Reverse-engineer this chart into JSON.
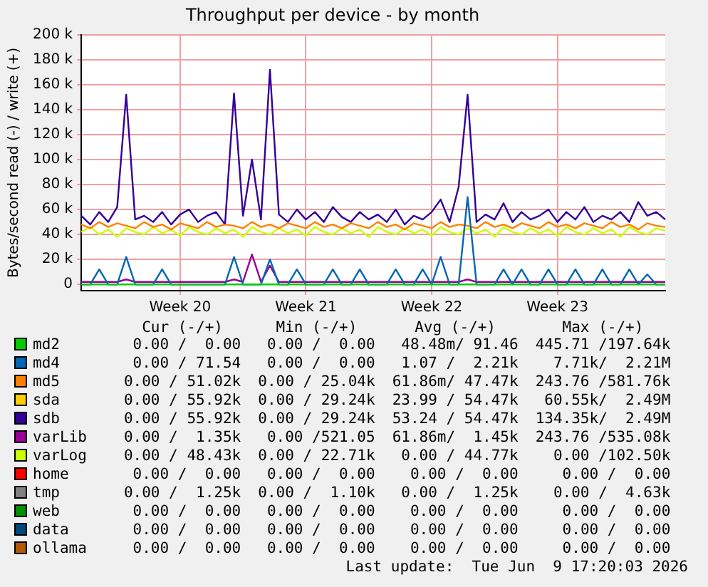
{
  "chart_data": {
    "type": "line",
    "title": "Throughput per device - by month",
    "ylabel": "Bytes/second read (-) / write (+)",
    "categories": [
      null,
      null,
      null,
      null,
      null,
      null,
      null,
      null,
      null,
      null,
      null,
      "Week 20",
      null,
      null,
      null,
      null,
      null,
      null,
      null,
      null,
      null,
      null,
      null,
      null,
      null,
      "Week 21",
      null,
      null,
      null,
      null,
      null,
      null,
      null,
      null,
      null,
      null,
      null,
      null,
      null,
      "Week 22",
      null,
      null,
      null,
      null,
      null,
      null,
      null,
      null,
      null,
      null,
      null,
      null,
      null,
      "Week 23",
      null,
      null,
      null,
      null,
      null,
      null,
      null,
      null,
      null,
      null,
      null,
      null
    ],
    "ylim": [
      -5000,
      200000
    ],
    "yticks": [
      {
        "value": 0,
        "label": "0"
      },
      {
        "value": 20000,
        "label": "20 k"
      },
      {
        "value": 40000,
        "label": "40 k"
      },
      {
        "value": 60000,
        "label": "60 k"
      },
      {
        "value": 80000,
        "label": "80 k"
      },
      {
        "value": 100000,
        "label": "100 k"
      },
      {
        "value": 120000,
        "label": "120 k"
      },
      {
        "value": 140000,
        "label": "140 k"
      },
      {
        "value": 160000,
        "label": "160 k"
      },
      {
        "value": 180000,
        "label": "180 k"
      },
      {
        "value": 200000,
        "label": "200 k"
      }
    ],
    "grid": true,
    "legend": "bottom",
    "series": [
      {
        "name": "md2",
        "color": "#00cc00",
        "values": [
          0,
          0,
          0,
          0,
          0,
          0,
          0,
          0,
          0,
          0,
          0,
          0,
          0,
          0,
          0,
          0,
          0,
          0,
          0,
          0,
          0,
          0,
          0,
          0,
          0,
          0,
          0,
          0,
          0,
          0,
          0,
          0,
          0,
          0,
          0,
          0,
          0,
          0,
          0,
          0,
          0,
          0,
          0,
          0,
          0,
          0,
          0,
          0,
          0,
          0,
          0,
          0,
          0,
          0,
          0,
          0,
          0,
          0,
          0,
          0,
          0,
          0,
          0,
          0,
          0,
          0
        ]
      },
      {
        "name": "md4",
        "color": "#0066b3",
        "values": [
          0,
          0,
          12000,
          0,
          0,
          22000,
          0,
          0,
          0,
          12000,
          0,
          0,
          0,
          0,
          0,
          0,
          0,
          22000,
          0,
          0,
          0,
          20000,
          0,
          0,
          12000,
          0,
          0,
          0,
          12000,
          0,
          0,
          12000,
          0,
          0,
          0,
          12000,
          0,
          0,
          12000,
          0,
          22000,
          0,
          0,
          70000,
          0,
          0,
          0,
          12000,
          0,
          12000,
          0,
          0,
          12000,
          0,
          0,
          12000,
          0,
          0,
          12000,
          0,
          0,
          12000,
          0,
          8000,
          0,
          0
        ]
      },
      {
        "name": "md5",
        "color": "#ff8000",
        "values": [
          48000,
          45000,
          50000,
          46000,
          49000,
          47000,
          45000,
          50000,
          46000,
          48000,
          44000,
          49000,
          47000,
          45000,
          50000,
          46000,
          48000,
          47000,
          45000,
          50000,
          46000,
          48000,
          45000,
          49000,
          47000,
          45000,
          50000,
          46000,
          48000,
          45000,
          49000,
          47000,
          45000,
          50000,
          46000,
          48000,
          44000,
          49000,
          47000,
          45000,
          50000,
          46000,
          48000,
          47000,
          45000,
          50000,
          46000,
          48000,
          45000,
          49000,
          47000,
          45000,
          50000,
          46000,
          48000,
          45000,
          49000,
          47000,
          45000,
          50000,
          46000,
          48000,
          44000,
          49000,
          47000,
          46000
        ]
      },
      {
        "name": "sda",
        "color": "#ffcc00",
        "values": [
          null,
          null,
          null,
          null,
          null,
          null,
          null,
          null,
          null,
          null,
          null,
          null,
          null,
          null,
          null,
          null,
          null,
          null,
          null,
          null,
          null,
          null,
          null,
          null,
          null,
          null,
          null,
          null,
          null,
          null,
          null,
          null,
          null,
          null,
          null,
          null,
          null,
          null,
          null,
          null,
          null,
          null,
          null,
          null,
          null,
          null,
          null,
          null,
          null,
          null,
          null,
          null,
          null,
          null,
          null,
          null,
          null,
          null,
          null,
          null,
          null,
          null,
          null,
          null,
          null,
          null
        ]
      },
      {
        "name": "sdb",
        "color": "#330099",
        "values": [
          55000,
          48000,
          58000,
          50000,
          62000,
          152000,
          52000,
          55000,
          50000,
          58000,
          48000,
          56000,
          60000,
          50000,
          55000,
          58000,
          48000,
          153000,
          55000,
          100000,
          52000,
          172000,
          56000,
          50000,
          60000,
          52000,
          58000,
          50000,
          62000,
          54000,
          50000,
          58000,
          52000,
          56000,
          50000,
          60000,
          48000,
          55000,
          52000,
          58000,
          68000,
          50000,
          78000,
          152000,
          50000,
          56000,
          52000,
          65000,
          50000,
          58000,
          52000,
          55000,
          60000,
          50000,
          58000,
          52000,
          62000,
          50000,
          55000,
          52000,
          58000,
          50000,
          66000,
          55000,
          58000,
          52000
        ]
      },
      {
        "name": "varLib",
        "color": "#990099",
        "values": [
          2000,
          2000,
          2000,
          2000,
          2000,
          4000,
          2000,
          2000,
          2000,
          2000,
          2000,
          2000,
          2000,
          2000,
          2000,
          2000,
          2000,
          4000,
          2000,
          24000,
          2000,
          15000,
          2000,
          2000,
          2000,
          2000,
          2000,
          2000,
          2000,
          2000,
          2000,
          2000,
          2000,
          2000,
          2000,
          2000,
          2000,
          2000,
          2000,
          2000,
          2000,
          2000,
          2000,
          4000,
          2000,
          2000,
          2000,
          2000,
          2000,
          2000,
          2000,
          2000,
          2000,
          2000,
          2000,
          2000,
          2000,
          2000,
          2000,
          2000,
          2000,
          2000,
          2000,
          2000,
          2000,
          2000
        ]
      },
      {
        "name": "varLog",
        "color": "#ccff00",
        "values": [
          42000,
          46000,
          40000,
          44000,
          38000,
          45000,
          42000,
          40000,
          46000,
          41000,
          44000,
          39000,
          46000,
          42000,
          40000,
          45000,
          41000,
          44000,
          38000,
          46000,
          42000,
          40000,
          45000,
          41000,
          44000,
          39000,
          46000,
          42000,
          40000,
          45000,
          41000,
          44000,
          38000,
          46000,
          42000,
          40000,
          45000,
          41000,
          44000,
          39000,
          46000,
          42000,
          40000,
          45000,
          41000,
          44000,
          38000,
          46000,
          42000,
          40000,
          45000,
          41000,
          44000,
          39000,
          46000,
          42000,
          40000,
          45000,
          41000,
          44000,
          38000,
          46000,
          42000,
          40000,
          45000,
          43000
        ]
      },
      {
        "name": "home",
        "color": "#ff0000",
        "values": [
          null,
          null,
          null,
          null,
          null,
          null,
          null,
          null,
          null,
          null,
          null,
          null,
          null,
          null,
          null,
          null,
          null,
          null,
          null,
          null,
          null,
          null,
          null,
          null,
          null,
          null,
          null,
          null,
          null,
          null,
          null,
          null,
          null,
          null,
          null,
          null,
          null,
          null,
          null,
          null,
          null,
          null,
          null,
          null,
          null,
          null,
          null,
          null,
          null,
          null,
          null,
          null,
          null,
          null,
          null,
          null,
          null,
          null,
          null,
          null,
          null,
          null,
          null,
          null,
          null,
          null
        ]
      },
      {
        "name": "tmp",
        "color": "#808080",
        "values": [
          null,
          null,
          null,
          null,
          null,
          null,
          null,
          null,
          null,
          null,
          null,
          null,
          null,
          null,
          null,
          null,
          null,
          null,
          null,
          null,
          null,
          null,
          null,
          null,
          null,
          null,
          null,
          null,
          null,
          null,
          null,
          null,
          null,
          null,
          null,
          null,
          null,
          null,
          null,
          null,
          null,
          null,
          null,
          null,
          null,
          null,
          null,
          null,
          null,
          null,
          null,
          null,
          null,
          null,
          null,
          null,
          null,
          null,
          null,
          null,
          null,
          null,
          null,
          null,
          null,
          null
        ]
      },
      {
        "name": "web",
        "color": "#008f00",
        "values": [
          null,
          null,
          null,
          null,
          null,
          null,
          null,
          null,
          null,
          null,
          null,
          null,
          null,
          null,
          null,
          null,
          null,
          null,
          null,
          null,
          null,
          null,
          null,
          null,
          null,
          null,
          null,
          null,
          null,
          null,
          null,
          null,
          null,
          null,
          null,
          null,
          null,
          null,
          null,
          null,
          null,
          null,
          null,
          null,
          null,
          null,
          null,
          null,
          null,
          null,
          null,
          null,
          null,
          null,
          null,
          null,
          null,
          null,
          null,
          null,
          null,
          null,
          null,
          null,
          null,
          null
        ]
      },
      {
        "name": "data",
        "color": "#00487d",
        "values": [
          null,
          null,
          null,
          null,
          null,
          null,
          null,
          null,
          null,
          null,
          null,
          null,
          null,
          null,
          null,
          null,
          null,
          null,
          null,
          null,
          null,
          null,
          null,
          null,
          null,
          null,
          null,
          null,
          null,
          null,
          null,
          null,
          null,
          null,
          null,
          null,
          null,
          null,
          null,
          null,
          null,
          null,
          null,
          null,
          null,
          null,
          null,
          null,
          null,
          null,
          null,
          null,
          null,
          null,
          null,
          null,
          null,
          null,
          null,
          null,
          null,
          null,
          null,
          null,
          null,
          null
        ]
      },
      {
        "name": "ollama",
        "color": "#b35a00",
        "values": [
          null,
          null,
          null,
          null,
          null,
          null,
          null,
          null,
          null,
          null,
          null,
          null,
          null,
          null,
          null,
          null,
          null,
          null,
          null,
          null,
          null,
          null,
          null,
          null,
          null,
          null,
          null,
          null,
          null,
          null,
          null,
          null,
          null,
          null,
          null,
          null,
          null,
          null,
          null,
          null,
          null,
          null,
          null,
          null,
          null,
          null,
          null,
          null,
          null,
          null,
          null,
          null,
          null,
          null,
          null,
          null,
          null,
          null,
          null,
          null,
          null,
          null,
          null,
          null,
          null,
          null
        ]
      }
    ],
    "annotations": [
      "Cur (-/+)",
      "Min (-/+)",
      "Avg (-/+)",
      "Max (-/+)",
      "0.00 /  0.00",
      "0.00 /  0.00",
      "48.48m/ 91.46",
      "445.71 /197.64k",
      "0.00 / 71.54",
      "0.00 /  0.00",
      "1.07 /  2.21k",
      "7.71k/  2.21M",
      "0.00 / 51.02k",
      "0.00 / 25.04k",
      "61.86m/ 47.47k",
      "243.76 /581.76k",
      "0.00 / 55.92k",
      "0.00 / 29.24k",
      "23.99 / 54.47k",
      "60.55k/  2.49M",
      "0.00 / 55.92k",
      "0.00 / 29.24k",
      "53.24 / 54.47k",
      "134.35k/  2.49M",
      "0.00 /  1.35k",
      "0.00 /521.05",
      "61.86m/  1.45k",
      "243.76 /535.08k",
      "0.00 / 48.43k",
      "0.00 / 22.71k",
      "0.00 / 44.77k",
      "0.00 /102.50k",
      "0.00 /  0.00",
      "0.00 /  0.00",
      "0.00 /  0.00",
      "0.00 /  0.00",
      "0.00 /  1.25k",
      "0.00 /  1.10k",
      "0.00 /  1.25k",
      "0.00 /  4.63k",
      "0.00 /  0.00",
      "0.00 /  0.00",
      "0.00 /  0.00",
      "0.00 /  0.00",
      "0.00 /  0.00",
      "0.00 /  0.00",
      "0.00 /  0.00",
      "0.00 /  0.00",
      "0.00 /  0.00",
      "0.00 /  0.00",
      "0.00 /  0.00",
      "0.00 /  0.00",
      "Last update:  Tue Jun  9 17:20:03 2026"
    ]
  }
}
